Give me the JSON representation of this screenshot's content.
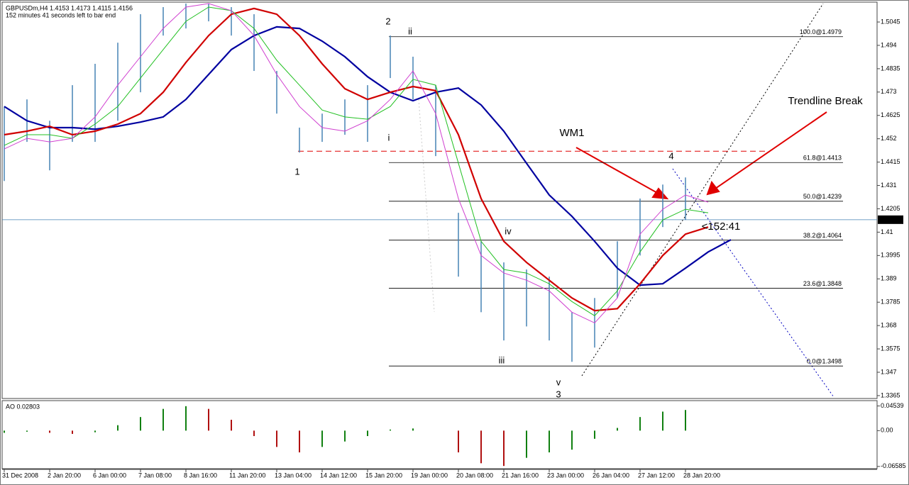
{
  "chart_data": [
    {
      "type": "line",
      "title": "GBPUSDm,H4  1.4153 1.4173 1.4115 1.4156",
      "subtitle": "152 minutes 41 seconds left to bar end",
      "categories": [
        "31 Dec 2008",
        null,
        "2 Jan 20:00",
        null,
        "6 Jan 00:00",
        null,
        "7 Jan 08:00",
        null,
        "8 Jan 16:00",
        null,
        "11 Jan 20:00",
        null,
        "13 Jan 04:00",
        null,
        "14 Jan 12:00",
        null,
        "15 Jan 20:00",
        null,
        "19 Jan 00:00",
        null,
        "20 Jan 08:00",
        null,
        "21 Jan 16:00",
        null,
        "23 Jan 00:00",
        null,
        "26 Jan 04:00",
        null,
        "27 Jan 12:00",
        null,
        "28 Jan 20:00",
        null,
        null
      ],
      "bars": {
        "color": "#4682b4",
        "high": [
          1.4665,
          1.4697,
          1.4601,
          1.4761,
          1.4857,
          1.4952,
          1.508,
          1.5112,
          1.5128,
          1.5128,
          1.5112,
          1.508,
          1.4825,
          1.457,
          1.4633,
          1.4697,
          1.4761,
          1.4984,
          1.4889,
          1.4761,
          1.4187,
          1.4059,
          1.3964,
          1.3932,
          1.39,
          1.374,
          1.3804,
          1.4059,
          1.4251,
          1.4314,
          1.4346
        ],
        "low": [
          1.433,
          1.4506,
          1.4378,
          1.4506,
          1.4506,
          1.4601,
          1.4729,
          1.4984,
          1.5016,
          1.5048,
          1.4984,
          1.4825,
          1.4633,
          1.4458,
          1.4506,
          1.4538,
          1.4506,
          1.4793,
          1.4697,
          1.4442,
          1.39,
          1.374,
          1.3613,
          1.3676,
          1.3613,
          1.3517,
          1.3581,
          1.3804,
          1.3995,
          1.4123,
          1.4155
        ]
      },
      "series": [
        {
          "color": "#0000a0",
          "values": [
            1.4665,
            1.4601,
            1.457,
            1.457,
            1.4563,
            1.4576,
            1.4595,
            1.4618,
            1.4697,
            1.4809,
            1.4921,
            1.4984,
            1.5023,
            1.5016,
            1.4959,
            1.4889,
            1.4799,
            1.4729,
            1.4691,
            1.4729,
            1.4748,
            1.4672,
            1.4554,
            1.441,
            1.4267,
            1.4171,
            1.4059,
            1.3938,
            1.3862,
            1.3868,
            1.3938,
            1.4011,
            1.4066
          ]
        },
        {
          "color": "#d00000",
          "values": [
            1.4538,
            1.4554,
            1.4576,
            1.4538,
            1.4554,
            1.4586,
            1.4633,
            1.4729,
            1.4863,
            1.4984,
            1.508,
            1.5106,
            1.508,
            1.4984,
            1.4857,
            1.4745,
            1.4697,
            1.4729,
            1.4755,
            1.4736,
            1.4538,
            1.4251,
            1.4059,
            1.3964,
            1.3884,
            1.3804,
            1.3747,
            1.3756,
            1.3868,
            1.3995,
            1.4091,
            1.4123,
            null
          ]
        },
        {
          "color": "#22c022",
          "values": [
            1.449,
            1.4538,
            1.4538,
            1.4522,
            1.4586,
            1.4665,
            1.4793,
            1.4921,
            1.5048,
            1.5112,
            1.5096,
            1.5016,
            1.4873,
            1.4761,
            1.4649,
            1.4618,
            1.4608,
            1.4665,
            1.4787,
            1.4761,
            1.441,
            1.4059,
            1.3932,
            1.3916,
            1.3868,
            1.3788,
            1.3724,
            1.3836,
            1.4011,
            1.4155,
            1.4203,
            1.4187,
            null
          ]
        },
        {
          "color": "#d040d0",
          "values": [
            1.4474,
            1.4522,
            1.4506,
            1.4522,
            1.4618,
            1.4761,
            1.4889,
            1.5016,
            1.5112,
            1.5128,
            1.5096,
            1.4984,
            1.4809,
            1.4665,
            1.457,
            1.4554,
            1.4601,
            1.4697,
            1.4825,
            1.4633,
            1.4251,
            1.3995,
            1.3916,
            1.3884,
            1.3836,
            1.374,
            1.3692,
            1.3804,
            1.4091,
            1.4203,
            1.4267,
            1.4235,
            null
          ]
        }
      ],
      "levels": [
        {
          "value": 1.4979,
          "label": "100.0@1.4979"
        },
        {
          "value": 1.4413,
          "label": "61.8@1.4413"
        },
        {
          "value": 1.4239,
          "label": "50.0@1.4239"
        },
        {
          "value": 1.4064,
          "label": "38.2@1.4064"
        },
        {
          "value": 1.3848,
          "label": "23.6@1.3848"
        },
        {
          "value": 1.3498,
          "label": "0.0@1.3498"
        }
      ],
      "dashed_level": 1.4464,
      "dashed_color": "#e00000",
      "current_price": 1.4156,
      "annotations": [
        "2",
        "ii",
        "i",
        "1",
        "iv",
        "iii",
        "v",
        "3",
        "4",
        "WM1",
        "Trendline Break",
        "<152:41"
      ],
      "ylim": [
        1.3352,
        1.5128
      ],
      "yticks": [
        1.5045,
        1.494,
        1.4835,
        1.473,
        1.4625,
        1.452,
        1.4415,
        1.431,
        1.4205,
        1.41,
        1.3995,
        1.389,
        1.3785,
        1.368,
        1.3575,
        1.347,
        1.3365
      ]
    },
    {
      "type": "histogram",
      "title": "AO 0.02803",
      "up_color": "#108010",
      "down_color": "#b01010",
      "values": [
        -0.004,
        -0.002,
        -0.004,
        -0.006,
        -0.003,
        0.01,
        0.025,
        0.04,
        0.045,
        0.04,
        0.02,
        -0.01,
        -0.03,
        -0.04,
        -0.03,
        -0.02,
        -0.01,
        0.002,
        0.004,
        0.0,
        -0.04,
        -0.06,
        -0.065,
        -0.05,
        -0.04,
        -0.035,
        -0.015,
        0.005,
        0.025,
        0.035,
        0.038
      ],
      "ylim": [
        -0.07,
        0.0539
      ],
      "yticks": [
        0.04539,
        {
          "value": 0,
          "label": "0.00"
        },
        -0.06585
      ]
    }
  ]
}
